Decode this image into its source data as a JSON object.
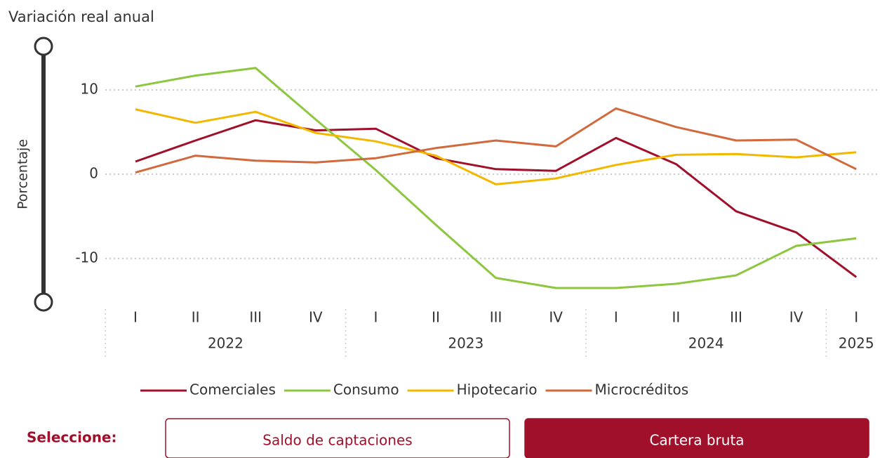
{
  "chart_data": {
    "type": "line",
    "title": "Variación real anual",
    "y_label": "Porcentaje",
    "groups": [
      {
        "name": "2022",
        "categories": [
          "I",
          "II",
          "III",
          "IV"
        ]
      },
      {
        "name": "2023",
        "categories": [
          "I",
          "II",
          "III",
          "IV"
        ]
      },
      {
        "name": "2024",
        "categories": [
          "I",
          "II",
          "III",
          "IV"
        ]
      },
      {
        "name": "2025",
        "categories": [
          "I"
        ]
      }
    ],
    "series": [
      {
        "name": "Comerciales",
        "color": "#a0102a",
        "values": [
          1.5,
          4.0,
          6.4,
          5.2,
          5.4,
          1.9,
          0.6,
          0.4,
          4.3,
          1.2,
          -4.4,
          -6.9,
          -12.2
        ]
      },
      {
        "name": "Consumo",
        "color": "#8dc63f",
        "values": [
          10.4,
          11.7,
          12.6,
          6.5,
          0.5,
          -6.0,
          -12.3,
          -13.5,
          -13.5,
          -13.0,
          -12.0,
          -8.5,
          -7.6
        ]
      },
      {
        "name": "Hipotecario",
        "color": "#f2b800",
        "values": [
          7.7,
          6.1,
          7.4,
          4.9,
          3.9,
          2.2,
          -1.2,
          -0.5,
          1.1,
          2.3,
          2.4,
          2.0,
          2.6
        ]
      },
      {
        "name": "Microcréditos",
        "color": "#d2693c",
        "values": [
          0.2,
          2.2,
          1.6,
          1.4,
          1.9,
          3.1,
          4.0,
          3.3,
          7.8,
          5.6,
          4.0,
          4.1,
          0.6
        ]
      }
    ],
    "ylim": [
      -15,
      15
    ],
    "yticks": [
      -10,
      0,
      10
    ],
    "grid": true
  },
  "controls": {
    "label": "Seleccione:",
    "buttons": [
      {
        "label": "Saldo de captaciones",
        "selected": false
      },
      {
        "label": "Cartera bruta",
        "selected": true
      }
    ]
  }
}
